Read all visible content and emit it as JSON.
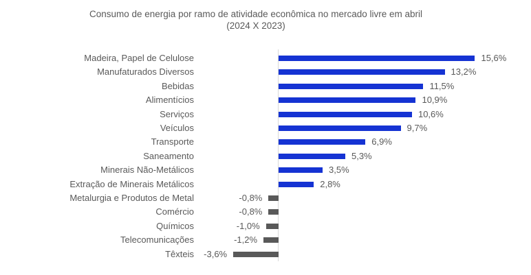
{
  "title": {
    "line1": "Consumo de energia por ramo de atividade econômica no mercado livre em abril",
    "line2": "(2024 X 2023)"
  },
  "chart_data": {
    "type": "bar",
    "orientation": "horizontal",
    "title": "Consumo de energia por ramo de atividade econômica no mercado livre em abril (2024 X 2023)",
    "xlabel": "",
    "ylabel": "",
    "categories": [
      "Madeira, Papel de Celulose",
      "Manufaturados Diversos",
      "Bebidas",
      "Alimentícios",
      "Serviços",
      "Veículos",
      "Transporte",
      "Saneamento",
      "Minerais Não-Metálicos",
      "Extração de Minerais Metálicos",
      "Metalurgia e Produtos de Metal",
      "Comércio",
      "Químicos",
      "Telecomunicações",
      "Têxteis"
    ],
    "values": [
      15.6,
      13.2,
      11.5,
      10.9,
      10.6,
      9.7,
      6.9,
      5.3,
      3.5,
      2.8,
      -0.8,
      -0.8,
      -1.0,
      -1.2,
      -3.6
    ],
    "value_labels": [
      "15,6%",
      "13,2%",
      "11,5%",
      "10,9%",
      "10,6%",
      "9,7%",
      "6,9%",
      "5,3%",
      "3,5%",
      "2,8%",
      "-0,8%",
      "-0,8%",
      "-1,0%",
      "-1,2%",
      "-3,6%"
    ],
    "xlim": [
      -4,
      16
    ],
    "grid": false,
    "legend": false,
    "colors": {
      "positive_bar": "#1533d3",
      "negative_bar": "#595959",
      "axis_line": "#d9d9d9",
      "text": "#595959"
    }
  }
}
